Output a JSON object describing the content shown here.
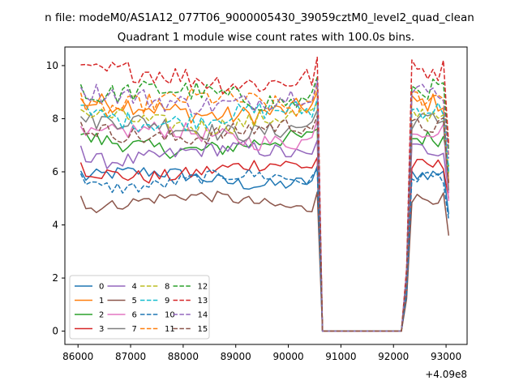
{
  "suptitle": "n file: modeM0/AS1A12_077T06_9000005430_39059cztM0_level2_quad_clean",
  "chart_data": {
    "type": "line",
    "title": "Quadrant 1 module wise count rates with 100.0s bins.",
    "xlabel": "",
    "ylabel": "",
    "x_offset_label": "+4.09e8",
    "xlim": [
      85750,
      93400
    ],
    "ylim": [
      -0.5,
      10.7
    ],
    "x_ticks": [
      86000,
      87000,
      88000,
      89000,
      90000,
      91000,
      92000,
      93000
    ],
    "x_tick_labels": [
      "86000",
      "87000",
      "88000",
      "89000",
      "90000",
      "91000",
      "92000",
      "93000"
    ],
    "y_ticks": [
      0,
      2,
      4,
      6,
      8,
      10
    ],
    "y_tick_labels": [
      "0",
      "2",
      "4",
      "6",
      "8",
      "10"
    ],
    "grid": false,
    "legend": {
      "placement": "lower-left",
      "ncol": 4
    },
    "segments": [
      {
        "x_start": 86050,
        "x_end": 90550,
        "step": 100
      },
      {
        "x_start": 90650,
        "x_end": 92150,
        "step": 100
      },
      {
        "x_start": 92250,
        "x_end": 93050,
        "step": 100
      }
    ],
    "series": [
      {
        "name": "0",
        "color": "#1f77b4",
        "dash": "solid",
        "level": 5.75,
        "final": 4.4
      },
      {
        "name": "1",
        "color": "#ff7f0e",
        "dash": "solid",
        "level": 8.35,
        "final": 5.6
      },
      {
        "name": "2",
        "color": "#2ca02c",
        "dash": "solid",
        "level": 7.05,
        "final": 6.2
      },
      {
        "name": "3",
        "color": "#d62728",
        "dash": "solid",
        "level": 6.05,
        "final": 5.0
      },
      {
        "name": "4",
        "color": "#9467bd",
        "dash": "solid",
        "level": 6.65,
        "final": 5.2
      },
      {
        "name": "5",
        "color": "#8c564b",
        "dash": "solid",
        "level": 4.85,
        "final": 3.6
      },
      {
        "name": "6",
        "color": "#e377c2",
        "dash": "solid",
        "level": 7.35,
        "final": 4.9
      },
      {
        "name": "7",
        "color": "#7f7f7f",
        "dash": "solid",
        "level": 7.7,
        "final": 5.3
      },
      {
        "name": "8",
        "color": "#bcbd22",
        "dash": "dashed",
        "level": 7.95,
        "final": 5.9
      },
      {
        "name": "9",
        "color": "#17becf",
        "dash": "dashed",
        "level": 8.1,
        "final": 6.0
      },
      {
        "name": "10",
        "color": "#1f77b4",
        "dash": "dashed",
        "level": 5.65,
        "final": 4.2
      },
      {
        "name": "11",
        "color": "#ff7f0e",
        "dash": "dashed",
        "level": 8.55,
        "final": 6.6
      },
      {
        "name": "12",
        "color": "#2ca02c",
        "dash": "dashed",
        "level": 8.85,
        "final": 6.8
      },
      {
        "name": "13",
        "color": "#d62728",
        "dash": "dashed",
        "level": 9.55,
        "final": 7.0
      },
      {
        "name": "14",
        "color": "#9467bd",
        "dash": "dashed",
        "level": 8.75,
        "final": 6.5
      },
      {
        "name": "15",
        "color": "#8c564b",
        "dash": "dashed",
        "level": 7.5,
        "final": 5.5
      }
    ]
  }
}
